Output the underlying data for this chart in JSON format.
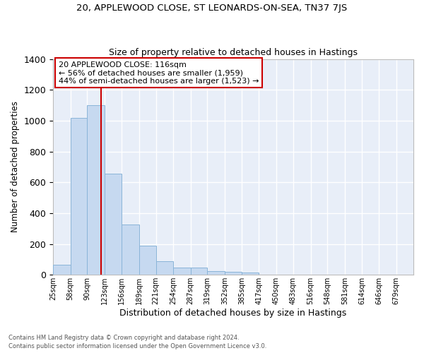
{
  "title1": "20, APPLEWOOD CLOSE, ST LEONARDS-ON-SEA, TN37 7JS",
  "title2": "Size of property relative to detached houses in Hastings",
  "xlabel": "Distribution of detached houses by size in Hastings",
  "ylabel": "Number of detached properties",
  "footer1": "Contains HM Land Registry data © Crown copyright and database right 2024.",
  "footer2": "Contains public sector information licensed under the Open Government Licence v3.0.",
  "bin_edges": [
    25,
    58,
    90,
    123,
    156,
    189,
    221,
    254,
    287,
    319,
    352,
    385,
    417,
    450,
    483,
    516,
    548,
    581,
    614,
    646,
    679,
    712
  ],
  "bar_heights": [
    65,
    1020,
    1100,
    655,
    325,
    190,
    90,
    45,
    45,
    25,
    20,
    15,
    0,
    0,
    0,
    0,
    0,
    0,
    0,
    0,
    0
  ],
  "bar_color": "#c6d9f0",
  "bar_edge_color": "#8ab4d8",
  "bg_color": "#e8eef8",
  "grid_color": "#ffffff",
  "vline_x": 116,
  "vline_color": "#cc0000",
  "annotation_text_line1": "20 APPLEWOOD CLOSE: 116sqm",
  "annotation_text_line2": "← 56% of detached houses are smaller (1,959)",
  "annotation_text_line3": "44% of semi-detached houses are larger (1,523) →",
  "annotation_box_color": "#cc0000",
  "ylim": [
    0,
    1400
  ],
  "yticks": [
    0,
    200,
    400,
    600,
    800,
    1000,
    1200,
    1400
  ],
  "tick_labels": [
    "25sqm",
    "58sqm",
    "90sqm",
    "123sqm",
    "156sqm",
    "189sqm",
    "221sqm",
    "254sqm",
    "287sqm",
    "319sqm",
    "352sqm",
    "385sqm",
    "417sqm",
    "450sqm",
    "483sqm",
    "516sqm",
    "548sqm",
    "581sqm",
    "614sqm",
    "646sqm",
    "679sqm"
  ],
  "figsize": [
    6.0,
    5.0
  ],
  "dpi": 100
}
